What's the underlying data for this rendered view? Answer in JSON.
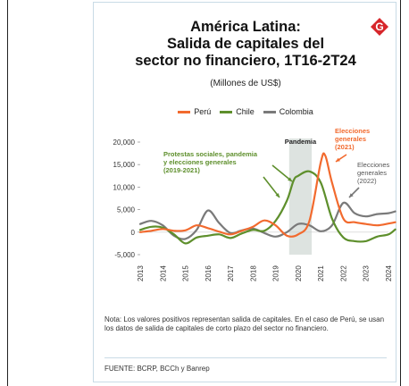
{
  "page": {
    "title_lines": [
      "América Latina:",
      "Salida de capitales del",
      "sector no financiero, 1T16-2T24"
    ],
    "subtitle": "(Millones de US$)",
    "logo_letter": "G",
    "note": "Nota: Los valores positivos representan salida de capitales. En el caso de Perú, se usan los datos de salida de capitales de corto plazo del sector no financiero.",
    "source": "FUENTE: BCRP, BCCh y Banrep"
  },
  "colors": {
    "peru": "#f26a2e",
    "chile": "#5e8f2c",
    "colombia": "#7a7a7a",
    "band": "#dde3e0",
    "brand": "#d7262b"
  },
  "chart_data": {
    "type": "line",
    "x_range": [
      2013,
      2024
    ],
    "ylim": [
      -5000,
      20000
    ],
    "y_ticks": [
      "20,000",
      "15,000",
      "10,000",
      "5,000",
      "0",
      "-5,000"
    ],
    "x_ticks": [
      "2013",
      "2014",
      "2015",
      "2016",
      "2017",
      "2018",
      "2019",
      "2020",
      "2021",
      "2022",
      "2023",
      "2024"
    ],
    "series": [
      {
        "name": "Perú",
        "color_key": "peru",
        "points": [
          [
            2013.0,
            0
          ],
          [
            2013.5,
            300
          ],
          [
            2014.0,
            700
          ],
          [
            2014.5,
            300
          ],
          [
            2015.0,
            400
          ],
          [
            2015.5,
            1500
          ],
          [
            2016.0,
            900
          ],
          [
            2016.5,
            100
          ],
          [
            2017.0,
            -500
          ],
          [
            2017.5,
            300
          ],
          [
            2018.0,
            1200
          ],
          [
            2018.5,
            2600
          ],
          [
            2019.0,
            1500
          ],
          [
            2019.5,
            -800
          ],
          [
            2020.0,
            -500
          ],
          [
            2020.5,
            2500
          ],
          [
            2021.0,
            15500
          ],
          [
            2021.2,
            17000
          ],
          [
            2021.5,
            11000
          ],
          [
            2022.0,
            3000
          ],
          [
            2022.5,
            2200
          ],
          [
            2023.0,
            1800
          ],
          [
            2023.5,
            1500
          ],
          [
            2024.0,
            1900
          ],
          [
            2024.3,
            2200
          ]
        ]
      },
      {
        "name": "Chile",
        "color_key": "chile",
        "points": [
          [
            2013.0,
            500
          ],
          [
            2013.5,
            1200
          ],
          [
            2014.0,
            1000
          ],
          [
            2014.5,
            -500
          ],
          [
            2015.0,
            -2500
          ],
          [
            2015.5,
            -1200
          ],
          [
            2016.0,
            -800
          ],
          [
            2016.5,
            -500
          ],
          [
            2017.0,
            -1300
          ],
          [
            2017.5,
            -300
          ],
          [
            2018.0,
            500
          ],
          [
            2018.5,
            300
          ],
          [
            2019.0,
            2500
          ],
          [
            2019.5,
            7000
          ],
          [
            2019.8,
            11500
          ],
          [
            2020.0,
            12500
          ],
          [
            2020.5,
            13500
          ],
          [
            2021.0,
            11000
          ],
          [
            2021.5,
            3000
          ],
          [
            2022.0,
            -1200
          ],
          [
            2022.5,
            -2000
          ],
          [
            2023.0,
            -2000
          ],
          [
            2023.5,
            -1000
          ],
          [
            2024.0,
            -500
          ],
          [
            2024.3,
            600
          ]
        ]
      },
      {
        "name": "Colombia",
        "color_key": "colombia",
        "points": [
          [
            2013.0,
            1800
          ],
          [
            2013.5,
            2500
          ],
          [
            2014.0,
            1500
          ],
          [
            2014.5,
            -800
          ],
          [
            2015.0,
            -1500
          ],
          [
            2015.5,
            500
          ],
          [
            2016.0,
            4800
          ],
          [
            2016.5,
            2000
          ],
          [
            2017.0,
            -200
          ],
          [
            2017.5,
            400
          ],
          [
            2018.0,
            800
          ],
          [
            2018.5,
            -200
          ],
          [
            2019.0,
            -1000
          ],
          [
            2019.5,
            0
          ],
          [
            2020.0,
            1800
          ],
          [
            2020.5,
            1500
          ],
          [
            2021.0,
            200
          ],
          [
            2021.5,
            1500
          ],
          [
            2022.0,
            6500
          ],
          [
            2022.5,
            4200
          ],
          [
            2023.0,
            3500
          ],
          [
            2023.5,
            4000
          ],
          [
            2024.0,
            4200
          ],
          [
            2024.3,
            4600
          ]
        ]
      }
    ],
    "pandemic_band": [
      2019.6,
      2020.6
    ],
    "annotations": {
      "pandemia": "Pandemia",
      "protestas": [
        "Protestas sociales, pandemia",
        "y elecciones generales",
        "(2019-2021)"
      ],
      "elecciones_2021": [
        "Elecciones",
        "generales",
        "(2021)"
      ],
      "elecciones_2022": [
        "Elecciones",
        "generales",
        "(2022)"
      ]
    }
  }
}
